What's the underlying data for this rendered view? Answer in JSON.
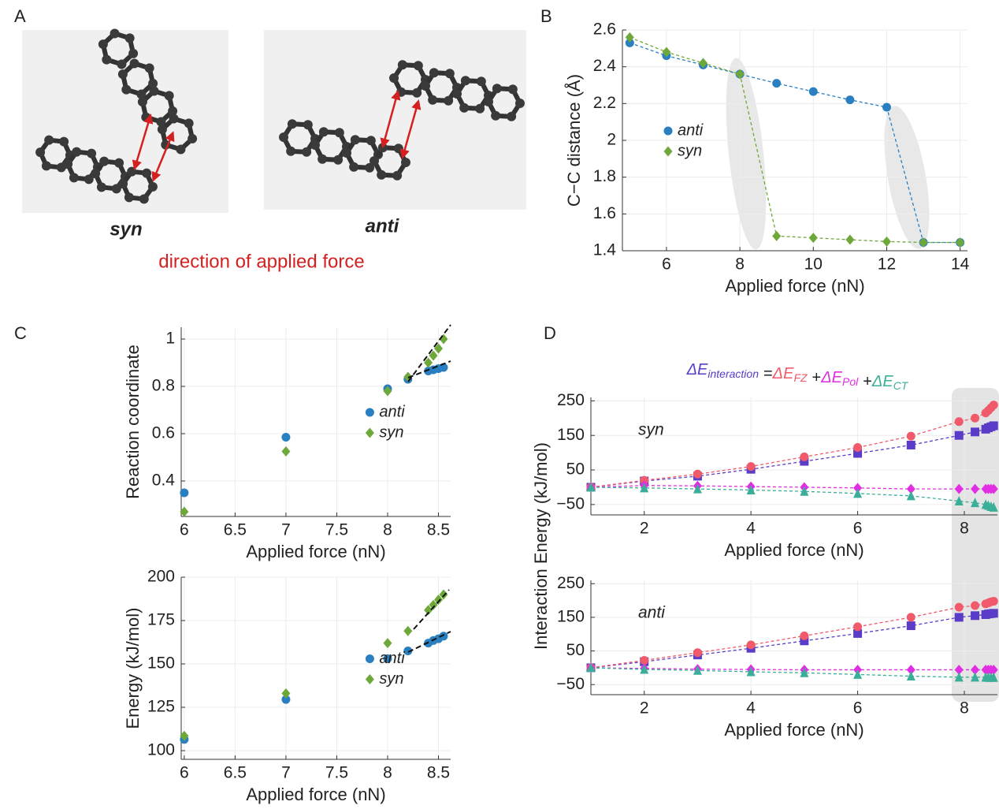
{
  "panel_labels": [
    "A",
    "B",
    "C",
    "D"
  ],
  "panel_a": {
    "labels": [
      "syn",
      "anti"
    ],
    "caption": "direction of applied force"
  },
  "chart_data": [
    {
      "type": "scatter",
      "connect": true,
      "xlabel": "Applied force (nN)",
      "ylabel": "C−C distance (Å)",
      "x": [
        5,
        6,
        7,
        8,
        9,
        10,
        11,
        12,
        13,
        14
      ],
      "series": [
        {
          "name": "anti",
          "color": "#2a7fc0",
          "marker": "circle",
          "values": [
            2.53,
            2.46,
            2.41,
            2.36,
            2.31,
            2.265,
            2.22,
            2.18,
            1.445,
            1.445
          ]
        },
        {
          "name": "syn",
          "color": "#6fa83a",
          "marker": "diamond",
          "values": [
            2.56,
            2.48,
            2.42,
            2.36,
            1.48,
            1.47,
            1.46,
            1.45,
            1.445,
            1.445
          ]
        }
      ],
      "xlim": [
        4.8,
        14.2
      ],
      "ylim": [
        1.4,
        2.6
      ],
      "xticks": [
        6,
        8,
        10,
        12,
        14
      ],
      "yticks": [
        1.4,
        1.6,
        1.8,
        2,
        2.2,
        2.4,
        2.6
      ],
      "grid": true,
      "legend": "center-left"
    },
    {
      "type": "scatter",
      "connect": false,
      "xlabel": "Applied force (nN)",
      "ylabel": "Reaction coordinate",
      "x": [
        6,
        7,
        8,
        8.2,
        8.4,
        8.45,
        8.5,
        8.55
      ],
      "series": [
        {
          "name": "anti",
          "color": "#2a7fc0",
          "marker": "circle",
          "values": [
            0.35,
            0.585,
            0.79,
            0.83,
            0.865,
            0.87,
            0.875,
            0.88
          ]
        },
        {
          "name": "syn",
          "color": "#6fa83a",
          "marker": "diamond",
          "values": [
            0.27,
            0.525,
            0.78,
            0.84,
            0.9,
            0.93,
            0.96,
            1.0
          ]
        }
      ],
      "xlim": [
        5.97,
        8.62
      ],
      "ylim": [
        0.25,
        1.05
      ],
      "xticks": [
        6,
        6.5,
        7,
        7.5,
        8,
        8.5
      ],
      "yticks": [
        0.4,
        0.6,
        0.8,
        1
      ],
      "grid": true,
      "legend": "center-right"
    },
    {
      "type": "scatter",
      "connect": false,
      "xlabel": "Applied force (nN)",
      "ylabel": "Energy (kJ/mol)",
      "x": [
        6,
        7,
        8,
        8.2,
        8.4,
        8.45,
        8.5,
        8.55
      ],
      "series": [
        {
          "name": "anti",
          "color": "#2a7fc0",
          "marker": "circle",
          "values": [
            106.5,
            129.5,
            153,
            157.5,
            162,
            163.5,
            164.5,
            166
          ]
        },
        {
          "name": "syn",
          "color": "#6fa83a",
          "marker": "diamond",
          "values": [
            108.5,
            133,
            162,
            169,
            181,
            184,
            187,
            190
          ]
        }
      ],
      "xlim": [
        5.97,
        8.62
      ],
      "ylim": [
        95,
        200
      ],
      "xticks": [
        6,
        6.5,
        7,
        7.5,
        8,
        8.5
      ],
      "yticks": [
        100,
        125,
        150,
        175,
        200
      ],
      "grid": true,
      "legend": "center-right"
    },
    {
      "type": "scatter",
      "connect": true,
      "xlabel": "Applied force (nN)",
      "ylabel": "Interaction Energy (kJ/mol)",
      "annotation": "syn",
      "equation_operators": [
        "=",
        "+",
        "+"
      ],
      "x": [
        1,
        2,
        3,
        4,
        5,
        6,
        7,
        7.9,
        8.2,
        8.4,
        8.45,
        8.5,
        8.55
      ],
      "series": [
        {
          "name": "ΔE",
          "subscript": "interaction",
          "color": "#5a3cc8",
          "marker": "square",
          "values": [
            0,
            18,
            32,
            52,
            75,
            98,
            122,
            150,
            160,
            168,
            172,
            175,
            178
          ]
        },
        {
          "name": "ΔE",
          "subscript": "FZ",
          "color": "#f05a6a",
          "marker": "circle",
          "values": [
            0,
            20,
            38,
            60,
            88,
            115,
            148,
            190,
            200,
            215,
            222,
            230,
            238
          ]
        },
        {
          "name": "ΔE",
          "subscript": "Pol",
          "color": "#e22ee2",
          "marker": "diamond",
          "values": [
            0,
            5,
            4,
            2,
            0,
            -2,
            -5,
            -5,
            -5,
            -5,
            -5,
            -5,
            -5
          ]
        },
        {
          "name": "ΔE",
          "subscript": "CT",
          "color": "#3aae98",
          "marker": "triangle",
          "values": [
            0,
            -2,
            -5,
            -8,
            -12,
            -18,
            -25,
            -40,
            -45,
            -50,
            -53,
            -56,
            -58
          ]
        }
      ],
      "xlim": [
        1,
        8.62
      ],
      "ylim": [
        -80,
        260
      ],
      "xticks": [
        2,
        4,
        6,
        8
      ],
      "yticks": [
        {
          "value": -50,
          "label": "−50"
        },
        50,
        150,
        250
      ],
      "grid": true
    },
    {
      "type": "scatter",
      "connect": true,
      "xlabel": "Applied force (nN)",
      "annotation": "anti",
      "x": [
        1,
        2,
        3,
        4,
        5,
        6,
        7,
        7.9,
        8.2,
        8.4,
        8.45,
        8.5,
        8.55
      ],
      "series": [
        {
          "color": "#5a3cc8",
          "marker": "square",
          "values": [
            0,
            18,
            38,
            58,
            80,
            102,
            125,
            150,
            155,
            158,
            160,
            161,
            162
          ]
        },
        {
          "color": "#f05a6a",
          "marker": "circle",
          "values": [
            0,
            22,
            45,
            68,
            95,
            122,
            150,
            180,
            185,
            190,
            193,
            196,
            198
          ]
        },
        {
          "color": "#e22ee2",
          "marker": "diamond",
          "values": [
            0,
            -2,
            -4,
            -5,
            -6,
            -6,
            -6,
            -6,
            -6,
            -6,
            -6,
            -6,
            -6
          ]
        },
        {
          "color": "#3aae98",
          "marker": "triangle",
          "values": [
            0,
            -5,
            -8,
            -12,
            -15,
            -20,
            -25,
            -28,
            -28,
            -28,
            -29,
            -29,
            -29
          ]
        }
      ],
      "xlim": [
        1,
        8.62
      ],
      "ylim": [
        -80,
        260
      ],
      "xticks": [
        2,
        4,
        6,
        8
      ],
      "yticks": [
        {
          "value": -50,
          "label": "−50"
        },
        50,
        150,
        250
      ],
      "grid": true
    }
  ]
}
